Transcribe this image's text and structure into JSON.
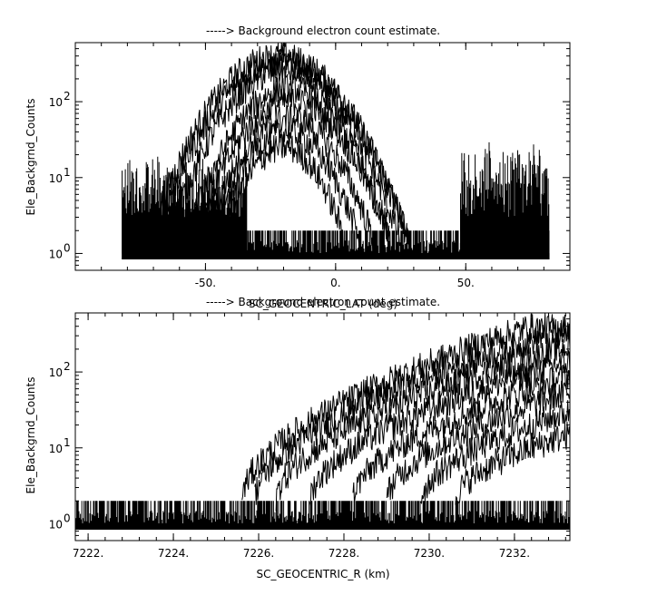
{
  "chart_data": [
    {
      "type": "line",
      "title": "-----> Background electron count estimate.",
      "xlabel": "SC_GEOCENTRIC_LAT (deg)",
      "ylabel": "Ele_Backgrnd_Counts",
      "xlim": [
        -100,
        90
      ],
      "ylim": [
        0.6,
        600
      ],
      "yscale": "log",
      "xticks": [
        -50,
        0,
        50
      ],
      "xtick_labels": [
        "-50.",
        "0.",
        "50."
      ],
      "yticks": [
        1,
        10,
        100
      ],
      "ytick_bases": [
        "10",
        "10",
        "10"
      ],
      "ytick_exps": [
        "0",
        "1",
        "2"
      ],
      "noise_floor": {
        "x_range": [
          -82,
          82
        ],
        "y_range": [
          1,
          2
        ]
      },
      "background_bands": [
        {
          "x_range": [
            -82,
            -34
          ],
          "peak": 20
        },
        {
          "x_range": [
            48,
            82
          ],
          "peak": 30
        }
      ],
      "series": [
        {
          "center": -22,
          "width": 15,
          "peak": 400
        },
        {
          "center": -21,
          "width": 15,
          "peak": 320
        },
        {
          "center": -20,
          "width": 14,
          "peak": 250
        },
        {
          "center": -18,
          "width": 13,
          "peak": 150
        },
        {
          "center": -17,
          "width": 13,
          "peak": 100
        },
        {
          "center": -18,
          "width": 12,
          "peak": 60
        },
        {
          "center": -19,
          "width": 11,
          "peak": 40
        },
        {
          "center": -20,
          "width": 10,
          "peak": 25
        }
      ]
    },
    {
      "type": "line",
      "title": "-----> Background electron count estimate.",
      "xlabel": "SC_GEOCENTRIC_R (km)",
      "ylabel": "Ele_Backgrnd_Counts",
      "xlim": [
        7221.7,
        7233.3
      ],
      "ylim": [
        0.6,
        600
      ],
      "yscale": "log",
      "xticks": [
        7222,
        7224,
        7226,
        7228,
        7230,
        7232
      ],
      "xtick_labels": [
        "7222.",
        "7224.",
        "7226.",
        "7228.",
        "7230.",
        "7232."
      ],
      "yticks": [
        1,
        10,
        100
      ],
      "ytick_bases": [
        "10",
        "10",
        "10"
      ],
      "ytick_exps": [
        "0",
        "1",
        "2"
      ],
      "noise_floor": {
        "x_range": [
          7221.7,
          7233.3
        ],
        "y_range": [
          1,
          2
        ]
      },
      "series": [
        {
          "onset": 7225.6,
          "peak_x": 7232.3,
          "peak": 380
        },
        {
          "onset": 7225.9,
          "peak_x": 7232.8,
          "peak": 300
        },
        {
          "onset": 7226.4,
          "peak_x": 7233.3,
          "peak": 220
        },
        {
          "onset": 7227.2,
          "peak_x": 7233.3,
          "peak": 140
        },
        {
          "onset": 7228.2,
          "peak_x": 7233.3,
          "peak": 90
        },
        {
          "onset": 7229.0,
          "peak_x": 7233.3,
          "peak": 55
        },
        {
          "onset": 7229.8,
          "peak_x": 7233.3,
          "peak": 30
        },
        {
          "onset": 7230.6,
          "peak_x": 7233.3,
          "peak": 15
        }
      ]
    }
  ]
}
